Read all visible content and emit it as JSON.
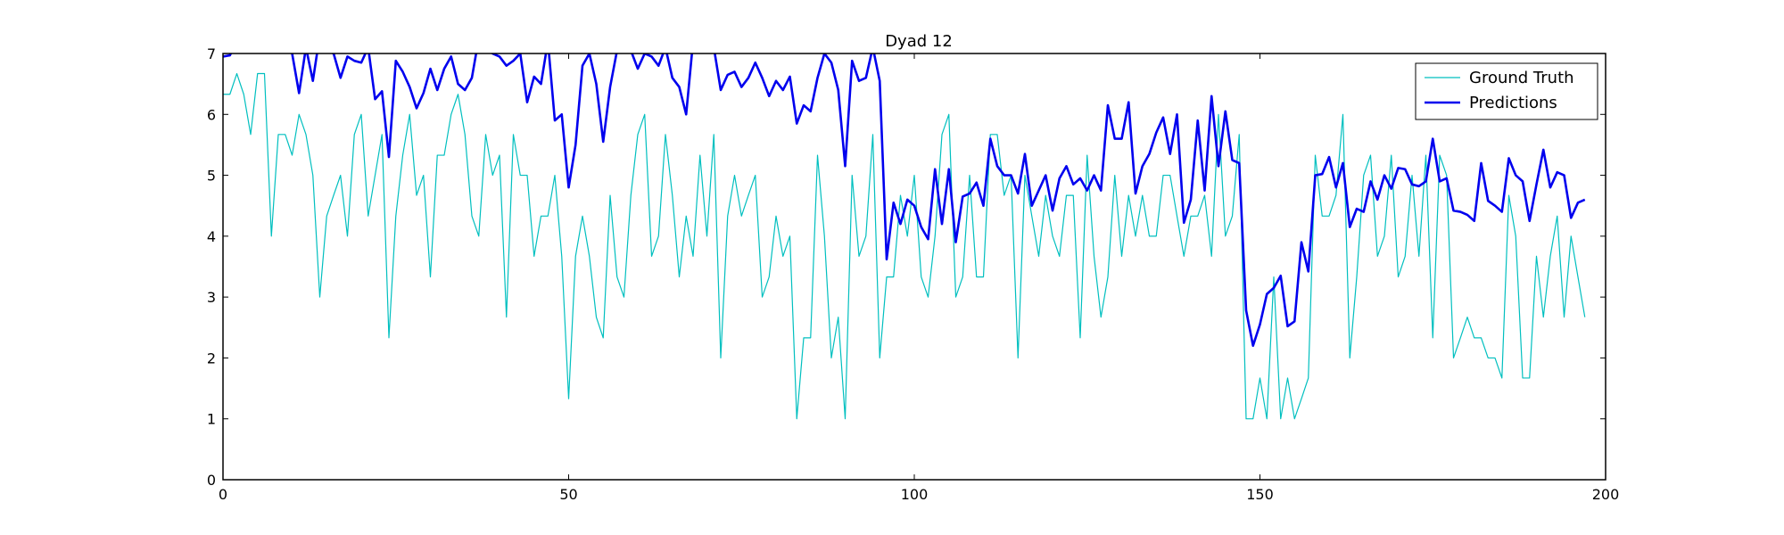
{
  "chart_data": {
    "type": "line",
    "title": "Dyad 12",
    "xlabel": "",
    "ylabel": "",
    "xlim": [
      0,
      200
    ],
    "ylim": [
      0,
      7
    ],
    "x_ticks": [
      0,
      50,
      100,
      150,
      200
    ],
    "y_ticks": [
      0,
      1,
      2,
      3,
      4,
      5,
      6,
      7
    ],
    "grid": false,
    "legend_position": "top-right",
    "series": [
      {
        "name": "Ground Truth",
        "color": "#00bfbf",
        "line_style": "thin",
        "x": [
          0,
          1,
          2,
          3,
          4,
          5,
          6,
          7,
          8,
          9,
          10,
          11,
          12,
          13,
          14,
          15,
          16,
          17,
          18,
          19,
          20,
          21,
          22,
          23,
          24,
          25,
          26,
          27,
          28,
          29,
          30,
          31,
          32,
          33,
          34,
          35,
          36,
          37,
          38,
          39,
          40,
          41,
          42,
          43,
          44,
          45,
          46,
          47,
          48,
          49,
          50,
          51,
          52,
          53,
          54,
          55,
          56,
          57,
          58,
          59,
          60,
          61,
          62,
          63,
          64,
          65,
          66,
          67,
          68,
          69,
          70,
          71,
          72,
          73,
          74,
          75,
          76,
          77,
          78,
          79,
          80,
          81,
          82,
          83,
          84,
          85,
          86,
          87,
          88,
          89,
          90,
          91,
          92,
          93,
          94,
          95,
          96,
          97,
          98,
          99,
          100,
          101,
          102,
          103,
          104,
          105,
          106,
          107,
          108,
          109,
          110,
          111,
          112,
          113,
          114,
          115,
          116,
          117,
          118,
          119,
          120,
          121,
          122,
          123,
          124,
          125,
          126,
          127,
          128,
          129,
          130,
          131,
          132,
          133,
          134,
          135,
          136,
          137,
          138,
          139,
          140,
          141,
          142,
          143,
          144,
          145,
          146,
          147,
          148,
          149,
          150,
          151,
          152,
          153,
          154,
          155,
          156,
          157,
          158,
          159,
          160,
          161,
          162,
          163,
          164,
          165,
          166,
          167,
          168,
          169,
          170,
          171,
          172,
          173,
          174,
          175,
          176,
          177,
          178,
          179,
          180,
          181,
          182,
          183,
          184,
          185,
          186,
          187,
          188,
          189,
          190,
          191,
          192,
          193,
          194,
          195,
          196,
          197
        ],
        "values": [
          6.33,
          6.33,
          6.67,
          6.33,
          5.67,
          6.67,
          6.67,
          4.0,
          5.67,
          5.67,
          5.33,
          6.0,
          5.67,
          5.0,
          3.0,
          4.33,
          4.67,
          5.0,
          4.0,
          5.67,
          6.0,
          4.33,
          5.0,
          5.67,
          2.33,
          4.33,
          5.33,
          6.0,
          4.67,
          5.0,
          3.33,
          5.33,
          5.33,
          6.0,
          6.33,
          5.67,
          4.33,
          4.0,
          5.67,
          5.0,
          5.33,
          2.67,
          5.67,
          5.0,
          5.0,
          3.67,
          4.33,
          4.33,
          5.0,
          3.67,
          1.33,
          3.67,
          4.33,
          3.67,
          2.67,
          2.33,
          4.67,
          3.33,
          3.0,
          4.67,
          5.67,
          6.0,
          3.67,
          4.0,
          5.67,
          4.67,
          3.33,
          4.33,
          3.67,
          5.33,
          4.0,
          5.67,
          2.0,
          4.33,
          5.0,
          4.33,
          4.67,
          5.0,
          3.0,
          3.33,
          4.33,
          3.67,
          4.0,
          1.0,
          2.33,
          2.33,
          5.33,
          4.0,
          2.0,
          2.67,
          1.0,
          5.0,
          3.67,
          4.0,
          5.67,
          2.0,
          3.33,
          3.33,
          4.67,
          4.0,
          5.0,
          3.33,
          3.0,
          4.0,
          5.67,
          6.0,
          3.0,
          3.33,
          5.0,
          3.33,
          3.33,
          5.67,
          5.67,
          4.67,
          5.0,
          2.0,
          5.0,
          4.33,
          3.67,
          4.67,
          4.0,
          3.67,
          4.67,
          4.67,
          2.33,
          5.33,
          3.67,
          2.67,
          3.33,
          5.0,
          3.67,
          4.67,
          4.0,
          4.67,
          4.0,
          4.0,
          5.0,
          5.0,
          4.33,
          3.67,
          4.33,
          4.33,
          4.67,
          3.67,
          6.0,
          4.0,
          4.33,
          5.67,
          1.0,
          1.0,
          1.67,
          1.0,
          3.33,
          1.0,
          1.67,
          1.0,
          1.33,
          1.67,
          5.33,
          4.33,
          4.33,
          4.67,
          6.0,
          2.0,
          3.33,
          5.0,
          5.33,
          3.67,
          4.0,
          5.33,
          3.33,
          3.67,
          5.0,
          3.67,
          5.33,
          2.33,
          5.33,
          5.0,
          2.0,
          2.33,
          2.67,
          2.33,
          2.33,
          2.0,
          2.0,
          1.67,
          4.67,
          4.0,
          1.67,
          1.67,
          3.67,
          2.67,
          3.67,
          4.33,
          2.67,
          4.0,
          3.33,
          2.67
        ]
      },
      {
        "name": "Predictions",
        "color": "#0000ee",
        "line_style": "thick",
        "x": [
          0,
          1,
          2,
          3,
          4,
          5,
          6,
          7,
          8,
          9,
          10,
          11,
          12,
          13,
          14,
          15,
          16,
          17,
          18,
          19,
          20,
          21,
          22,
          23,
          24,
          25,
          26,
          27,
          28,
          29,
          30,
          31,
          32,
          33,
          34,
          35,
          36,
          37,
          38,
          39,
          40,
          41,
          42,
          43,
          44,
          45,
          46,
          47,
          48,
          49,
          50,
          51,
          52,
          53,
          54,
          55,
          56,
          57,
          58,
          59,
          60,
          61,
          62,
          63,
          64,
          65,
          66,
          67,
          68,
          69,
          70,
          71,
          72,
          73,
          74,
          75,
          76,
          77,
          78,
          79,
          80,
          81,
          82,
          83,
          84,
          85,
          86,
          87,
          88,
          89,
          90,
          91,
          92,
          93,
          94,
          95,
          96,
          97,
          98,
          99,
          100,
          101,
          102,
          103,
          104,
          105,
          106,
          107,
          108,
          109,
          110,
          111,
          112,
          113,
          114,
          115,
          116,
          117,
          118,
          119,
          120,
          121,
          122,
          123,
          124,
          125,
          126,
          127,
          128,
          129,
          130,
          131,
          132,
          133,
          134,
          135,
          136,
          137,
          138,
          139,
          140,
          141,
          142,
          143,
          144,
          145,
          146,
          147,
          148,
          149,
          150,
          151,
          152,
          153,
          154,
          155,
          156,
          157,
          158,
          159,
          160,
          161,
          162,
          163,
          164,
          165,
          166,
          167,
          168,
          169,
          170,
          171,
          172,
          173,
          174,
          175,
          176,
          177,
          178,
          179,
          180,
          181,
          182,
          183,
          184,
          185,
          186,
          187,
          188,
          189,
          190,
          191,
          192,
          193,
          194,
          195,
          196,
          197
        ],
        "values": [
          6.95,
          6.97,
          7.2,
          7.4,
          7.6,
          7.5,
          7.45,
          7.35,
          7.3,
          7.2,
          7.0,
          6.35,
          7.1,
          6.55,
          7.3,
          7.05,
          7.0,
          6.6,
          6.95,
          6.88,
          6.85,
          7.1,
          6.25,
          6.38,
          5.3,
          6.88,
          6.7,
          6.45,
          6.1,
          6.35,
          6.75,
          6.4,
          6.75,
          6.95,
          6.5,
          6.4,
          6.6,
          7.25,
          7.1,
          7.0,
          6.95,
          6.8,
          6.88,
          7.0,
          6.2,
          6.62,
          6.5,
          7.2,
          5.9,
          6.0,
          4.8,
          5.5,
          6.8,
          7.0,
          6.5,
          5.55,
          6.45,
          7.05,
          7.3,
          7.05,
          6.75,
          7.0,
          6.95,
          6.8,
          7.1,
          6.6,
          6.45,
          6.0,
          7.2,
          7.5,
          7.3,
          7.1,
          6.4,
          6.65,
          6.7,
          6.45,
          6.6,
          6.85,
          6.6,
          6.3,
          6.55,
          6.4,
          6.62,
          5.85,
          6.15,
          6.05,
          6.6,
          7.0,
          6.85,
          6.4,
          5.15,
          6.88,
          6.55,
          6.6,
          7.1,
          6.55,
          3.62,
          4.55,
          4.2,
          4.6,
          4.5,
          4.15,
          3.95,
          5.1,
          4.2,
          5.1,
          3.9,
          4.65,
          4.7,
          4.88,
          4.5,
          5.6,
          5.15,
          5.0,
          5.0,
          4.7,
          5.35,
          4.5,
          4.75,
          5.0,
          4.42,
          4.95,
          5.15,
          4.85,
          4.95,
          4.75,
          5.0,
          4.75,
          6.15,
          5.6,
          5.6,
          6.2,
          4.7,
          5.15,
          5.35,
          5.7,
          5.95,
          5.35,
          6.0,
          4.22,
          4.6,
          5.9,
          4.75,
          6.3,
          5.15,
          6.05,
          5.25,
          5.2,
          2.78,
          2.2,
          2.55,
          3.05,
          3.15,
          3.35,
          2.52,
          2.6,
          3.9,
          3.42,
          5.0,
          5.02,
          5.3,
          4.8,
          5.2,
          4.15,
          4.45,
          4.4,
          4.9,
          4.6,
          5.0,
          4.78,
          5.12,
          5.1,
          4.85,
          4.82,
          4.9,
          5.6,
          4.9,
          4.95,
          4.42,
          4.4,
          4.35,
          4.25,
          5.2,
          4.58,
          4.5,
          4.4,
          5.28,
          5.0,
          4.9,
          4.25,
          4.85,
          5.42,
          4.8,
          5.05,
          5.0,
          4.3,
          4.55,
          4.6
        ]
      }
    ]
  }
}
